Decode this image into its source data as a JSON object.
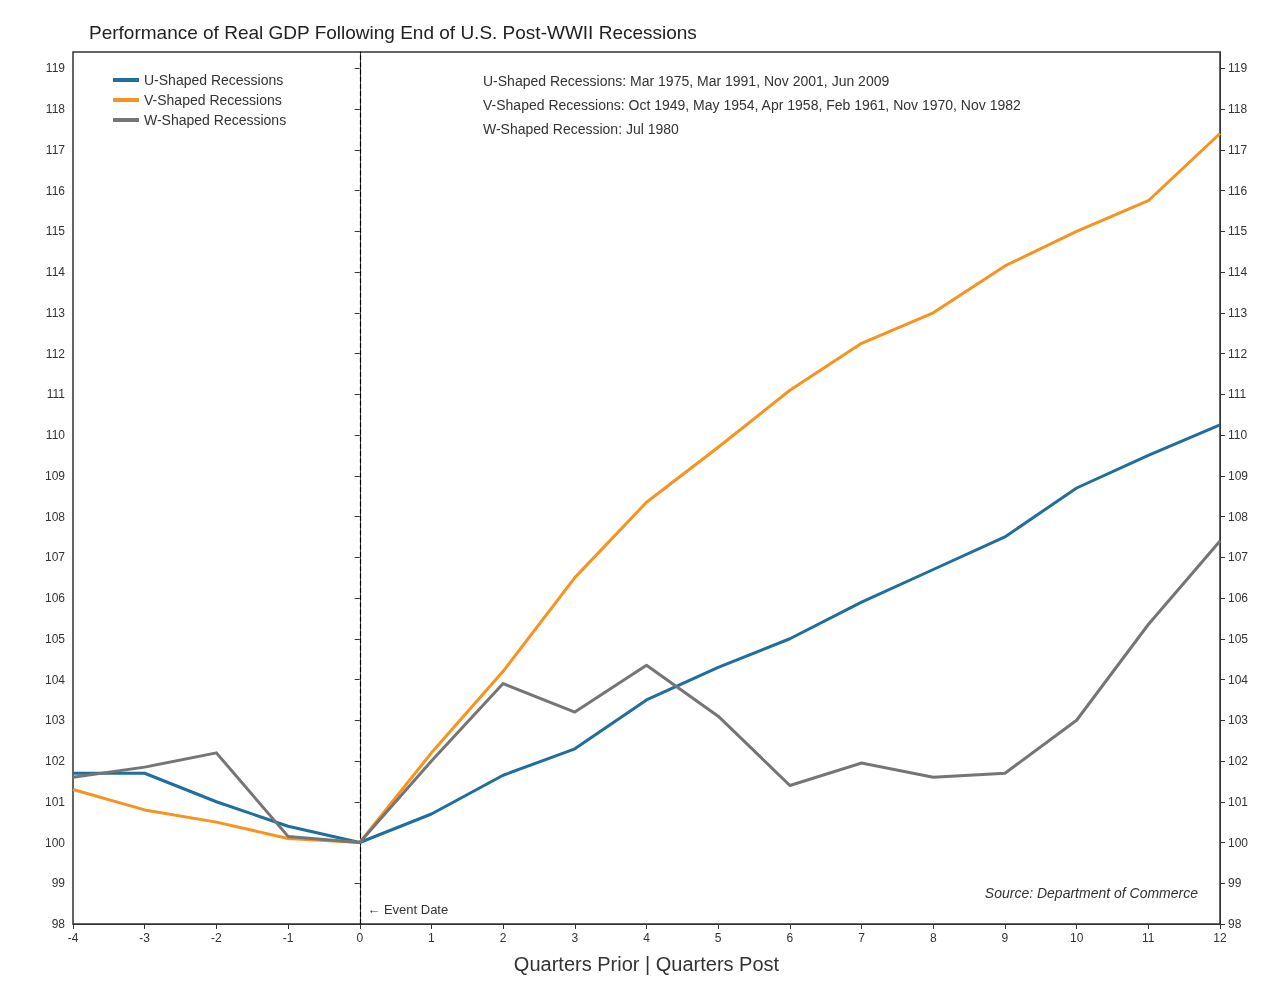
{
  "chart_data": {
    "type": "line",
    "title": "Performance of Real GDP Following End of U.S. Post-WWII Recessions",
    "xlabel": "Quarters Prior | Quarters Post",
    "x": [
      -4,
      -3,
      -2,
      -1,
      0,
      1,
      2,
      3,
      4,
      5,
      6,
      7,
      8,
      9,
      10,
      11,
      12
    ],
    "series": [
      {
        "name": "U-Shaped Recessions",
        "color": "#1f6e9c",
        "values": [
          101.7,
          101.7,
          101.0,
          100.4,
          100,
          100.7,
          101.65,
          102.3,
          103.5,
          104.3,
          105.0,
          105.9,
          106.7,
          107.5,
          108.7,
          109.5,
          110.25
        ]
      },
      {
        "name": "V-Shaped Recessions",
        "color": "#f7931e",
        "values": [
          101.3,
          100.8,
          100.5,
          100.1,
          100,
          102.2,
          104.2,
          106.5,
          108.35,
          109.7,
          111.1,
          112.25,
          113.0,
          114.15,
          115.0,
          115.75,
          117.4
        ]
      },
      {
        "name": "W-Shaped Recessions",
        "color": "#757575",
        "values": [
          101.6,
          101.85,
          102.2,
          100.15,
          100,
          102.0,
          103.9,
          103.2,
          104.35,
          103.1,
          101.4,
          101.95,
          101.6,
          101.7,
          103.0,
          105.35,
          107.4
        ]
      }
    ],
    "xlim": [
      -4,
      12
    ],
    "xticks": [
      -4,
      -3,
      -2,
      -1,
      0,
      1,
      2,
      3,
      4,
      5,
      6,
      7,
      8,
      9,
      10,
      11,
      12
    ],
    "ylim": [
      98,
      119.4
    ],
    "yticks": [
      98,
      99,
      100,
      101,
      102,
      103,
      104,
      105,
      106,
      107,
      108,
      109,
      110,
      111,
      112,
      113,
      114,
      115,
      116,
      117,
      118,
      119
    ],
    "y2lim": [
      98,
      119.4
    ],
    "y2ticks": [
      98,
      99,
      100,
      101,
      102,
      103,
      104,
      105,
      106,
      107,
      108,
      109,
      110,
      111,
      112,
      113,
      114,
      115,
      116,
      117,
      118,
      119
    ],
    "ref_lines": [
      {
        "axis": "x",
        "value": 0,
        "label": "← Event Date",
        "color": "#000000",
        "line_style": "dashed"
      }
    ],
    "annotations": [
      "U-Shaped Recessions: Mar 1975, Mar 1991, Nov 2001, Jun 2009",
      "V-Shaped Recessions: Oct 1949, May 1954, Apr 1958, Feb 1961, Nov 1970, Nov 1982",
      "W-Shaped Recession: Jul 1980",
      "Source: Department of Commerce"
    ],
    "legend": "top left",
    "grid": false,
    "marker": "none",
    "line_style": "solid"
  }
}
